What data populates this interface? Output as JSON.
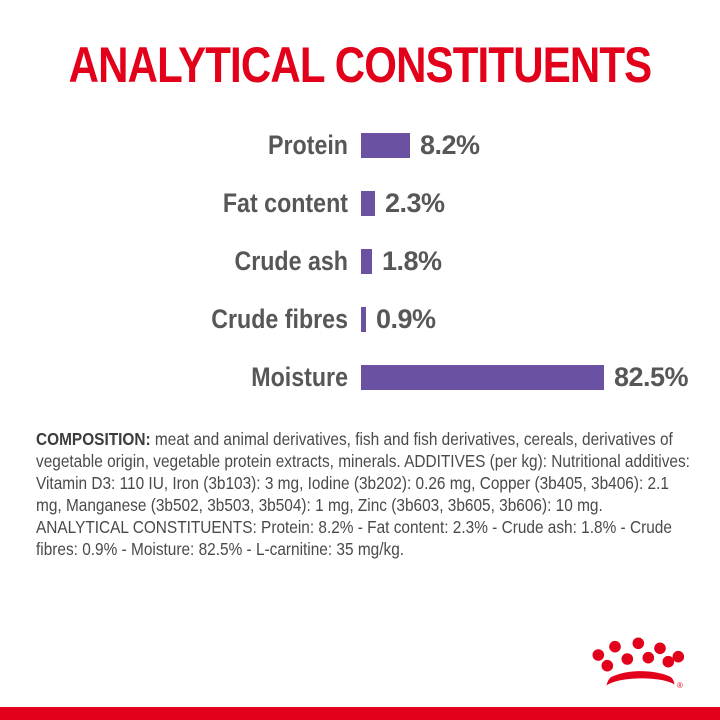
{
  "page": {
    "background_color": "#ffffff"
  },
  "title": {
    "text": "ANALYTICAL CONSTITUENTS",
    "color": "#e2001a"
  },
  "chart_data": {
    "type": "bar",
    "orientation": "horizontal",
    "title": "ANALYTICAL CONSTITUENTS",
    "xlabel": "",
    "ylabel": "",
    "categories": [
      "Protein",
      "Fat content",
      "Crude ash",
      "Crude fibres",
      "Moisture"
    ],
    "values": [
      8.2,
      2.3,
      1.8,
      0.9,
      82.5
    ],
    "value_labels": [
      "8.2%",
      "2.3%",
      "1.8%",
      "0.9%",
      "82.5%"
    ],
    "unit": "%",
    "xlim": [
      0,
      82.5
    ],
    "grid": false,
    "legend": false,
    "bar_color": "#6b51a1",
    "label_color": "#575756"
  },
  "composition": {
    "lead": "COMPOSITION:",
    "body": " meat and animal derivatives, fish and fish derivatives, cereals, derivatives of vegetable origin, vegetable protein extracts, minerals. ADDITIVES (per kg): Nutritional additives: Vitamin D3: 110 IU, Iron (3b103): 3 mg, Iodine (3b202): 0.26 mg, Copper (3b405, 3b406): 2.1 mg, Manganese (3b502, 3b503, 3b504): 1 mg, Zinc (3b603, 3b605, 3b606): 10 mg. ANALYTICAL CONSTITUENTS: Protein: 8.2% - Fat content: 2.3% - Crude ash: 1.8% - Crude fibres: 0.9% - Moisture: 82.5% - L-carnitine: 35 mg/kg."
  },
  "footer": {
    "logo": "royal-canin-crown",
    "registered_mark": "®",
    "logo_color": "#e2001a",
    "bar_color": "#e2001a"
  }
}
